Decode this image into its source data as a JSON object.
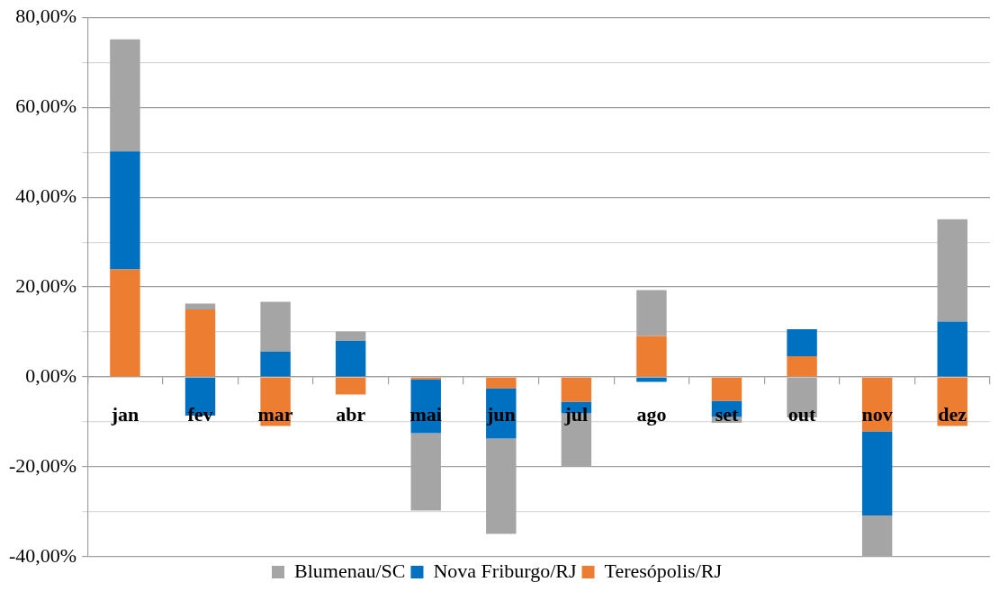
{
  "chart_data": {
    "type": "bar",
    "stacked": true,
    "categories": [
      "jan",
      "fev",
      "mar",
      "abr",
      "mai",
      "jun",
      "jul",
      "ago",
      "set",
      "out",
      "nov",
      "dez"
    ],
    "series": [
      {
        "name": "Teresópolis/RJ",
        "color": "#ed7d31",
        "values": [
          23.9,
          15.0,
          -10.9,
          -3.9,
          -0.5,
          -2.5,
          -5.5,
          9.1,
          -5.3,
          4.6,
          -12.1,
          -10.9
        ]
      },
      {
        "name": "Nova Friburgo/RJ",
        "color": "#0070c0",
        "values": [
          26.3,
          -8.6,
          5.6,
          8.0,
          -12.0,
          -11.2,
          -2.6,
          -1.1,
          -3.6,
          6.0,
          -18.7,
          12.3
        ]
      },
      {
        "name": "Blumenau/SC",
        "color": "#a5a5a5",
        "values": [
          24.9,
          1.3,
          11.1,
          2.1,
          -17.2,
          -21.2,
          -11.8,
          10.2,
          -1.3,
          -9.0,
          -9.2,
          22.8
        ]
      }
    ],
    "ylim": [
      -40,
      80
    ],
    "yticks": [
      {
        "value": -40,
        "label": "-40,00%"
      },
      {
        "value": -30,
        "label": null
      },
      {
        "value": -20,
        "label": "-20,00%"
      },
      {
        "value": -10,
        "label": null
      },
      {
        "value": 0,
        "label": "0,00%"
      },
      {
        "value": 10,
        "label": null
      },
      {
        "value": 20,
        "label": "20,00%"
      },
      {
        "value": 30,
        "label": null
      },
      {
        "value": 40,
        "label": "40,00%"
      },
      {
        "value": 50,
        "label": null
      },
      {
        "value": 60,
        "label": "60,00%"
      },
      {
        "value": 70,
        "label": null
      },
      {
        "value": 80,
        "label": "80,00%"
      }
    ],
    "grid": "y",
    "legend": "bottom"
  }
}
